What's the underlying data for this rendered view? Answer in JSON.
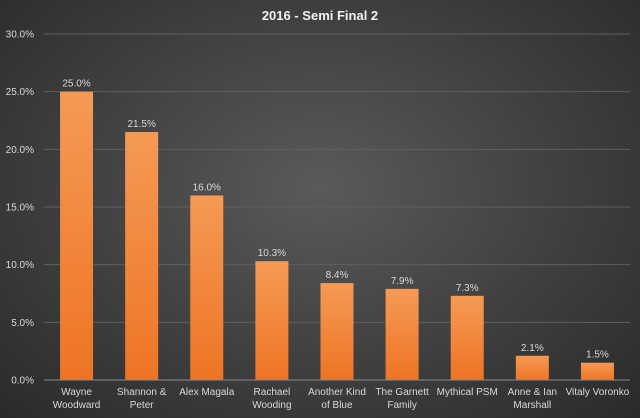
{
  "chart_data": {
    "type": "bar",
    "title": "2016 - Semi Final 2",
    "xlabel": "",
    "ylabel": "",
    "ylim": [
      0,
      30
    ],
    "yticks": [
      "0.0%",
      "5.0%",
      "10.0%",
      "15.0%",
      "20.0%",
      "25.0%",
      "30.0%"
    ],
    "ytick_values": [
      0,
      5,
      10,
      15,
      20,
      25,
      30
    ],
    "grid": true,
    "legend": "none",
    "categories": [
      [
        "Wayne",
        "Woodward"
      ],
      [
        "Shannon &",
        "Peter"
      ],
      [
        "Alex Magala"
      ],
      [
        "Rachael",
        "Wooding"
      ],
      [
        "Another Kind",
        "of Blue"
      ],
      [
        "The Garnett",
        "Family"
      ],
      [
        "Mythical PSM"
      ],
      [
        "Anne & Ian",
        "Marshall"
      ],
      [
        "Vitaly Voronko"
      ]
    ],
    "values": [
      25.0,
      21.5,
      16.0,
      10.3,
      8.4,
      7.9,
      7.3,
      2.1,
      1.5
    ],
    "data_labels": [
      "25.0%",
      "21.5%",
      "16.0%",
      "10.3%",
      "8.4%",
      "7.9%",
      "7.3%",
      "2.1%",
      "1.5%"
    ],
    "colors": {
      "bar_top": "#f59a55",
      "bar_bottom": "#ee7424"
    }
  }
}
